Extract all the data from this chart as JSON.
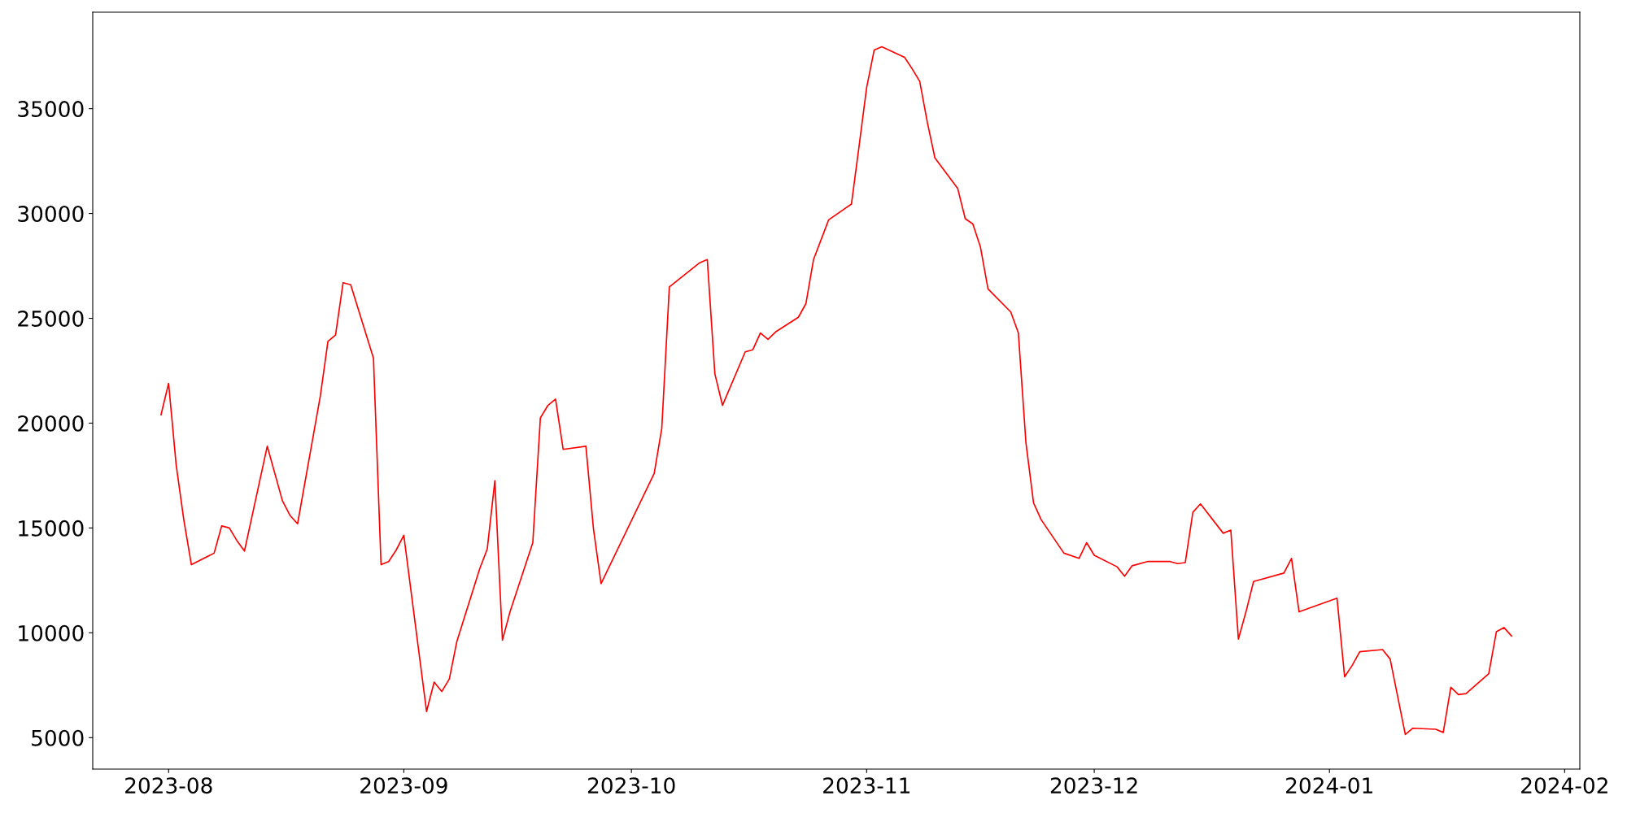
{
  "chart_data": {
    "type": "line",
    "x": [
      "2023-07-31",
      "2023-08-01",
      "2023-08-02",
      "2023-08-03",
      "2023-08-04",
      "2023-08-07",
      "2023-08-08",
      "2023-08-09",
      "2023-08-10",
      "2023-08-11",
      "2023-08-14",
      "2023-08-16",
      "2023-08-17",
      "2023-08-18",
      "2023-08-21",
      "2023-08-22",
      "2023-08-23",
      "2023-08-24",
      "2023-08-25",
      "2023-08-28",
      "2023-08-29",
      "2023-08-30",
      "2023-08-31",
      "2023-09-01",
      "2023-09-04",
      "2023-09-05",
      "2023-09-06",
      "2023-09-07",
      "2023-09-08",
      "2023-09-11",
      "2023-09-12",
      "2023-09-13",
      "2023-09-14",
      "2023-09-15",
      "2023-09-18",
      "2023-09-19",
      "2023-09-20",
      "2023-09-21",
      "2023-09-22",
      "2023-09-25",
      "2023-09-26",
      "2023-09-27",
      "2023-10-04",
      "2023-10-05",
      "2023-10-06",
      "2023-10-10",
      "2023-10-11",
      "2023-10-12",
      "2023-10-13",
      "2023-10-16",
      "2023-10-17",
      "2023-10-18",
      "2023-10-19",
      "2023-10-20",
      "2023-10-23",
      "2023-10-24",
      "2023-10-25",
      "2023-10-27",
      "2023-10-30",
      "2023-10-31",
      "2023-11-01",
      "2023-11-02",
      "2023-11-03",
      "2023-11-06",
      "2023-11-07",
      "2023-11-08",
      "2023-11-09",
      "2023-11-10",
      "2023-11-13",
      "2023-11-14",
      "2023-11-15",
      "2023-11-16",
      "2023-11-17",
      "2023-11-20",
      "2023-11-21",
      "2023-11-22",
      "2023-11-23",
      "2023-11-24",
      "2023-11-27",
      "2023-11-29",
      "2023-11-30",
      "2023-12-01",
      "2023-12-04",
      "2023-12-05",
      "2023-12-06",
      "2023-12-08",
      "2023-12-11",
      "2023-12-12",
      "2023-12-13",
      "2023-12-14",
      "2023-12-15",
      "2023-12-18",
      "2023-12-19",
      "2023-12-20",
      "2023-12-21",
      "2023-12-22",
      "2023-12-26",
      "2023-12-27",
      "2023-12-28",
      "2024-01-02",
      "2024-01-03",
      "2024-01-04",
      "2024-01-05",
      "2024-01-08",
      "2024-01-09",
      "2024-01-11",
      "2024-01-12",
      "2024-01-15",
      "2024-01-16",
      "2024-01-17",
      "2024-01-18",
      "2024-01-19",
      "2024-01-22",
      "2024-01-23",
      "2024-01-24",
      "2024-01-25"
    ],
    "series": [
      {
        "color": "#ff0000",
        "values": [
          20400,
          21900,
          18000,
          15400,
          13250,
          13800,
          15100,
          15000,
          14400,
          13900,
          18900,
          16300,
          15600,
          15200,
          21300,
          23900,
          24200,
          26700,
          26600,
          23100,
          13250,
          13400,
          13950,
          14650,
          6250,
          7650,
          7200,
          7800,
          9600,
          13050,
          14000,
          17250,
          9650,
          11000,
          14300,
          20250,
          20850,
          21150,
          18750,
          18900,
          14950,
          12350,
          17600,
          19750,
          26500,
          27650,
          27800,
          22350,
          20850,
          23400,
          23500,
          24300,
          24000,
          24350,
          25050,
          25700,
          27800,
          29700,
          30450,
          33200,
          36000,
          37800,
          37950,
          37450,
          36900,
          36300,
          34350,
          32650,
          31200,
          29750,
          29500,
          28400,
          26400,
          25300,
          24300,
          19050,
          16200,
          15400,
          13800,
          13550,
          14300,
          13700,
          13150,
          12700,
          13200,
          13400,
          13400,
          13300,
          13350,
          15750,
          16150,
          14750,
          14900,
          9700,
          11000,
          12450,
          12850,
          13550,
          11000,
          11650,
          7900,
          8450,
          9100,
          9200,
          8750,
          5150,
          5450,
          5400,
          5250,
          7400,
          7050,
          7100,
          8050,
          10050,
          10250,
          9850
        ]
      }
    ],
    "xlim": [
      "2023-07-22",
      "2024-02-03"
    ],
    "xticks": [
      {
        "value": "2023-08-01",
        "label": "2023-08"
      },
      {
        "value": "2023-09-01",
        "label": "2023-09"
      },
      {
        "value": "2023-10-01",
        "label": "2023-10"
      },
      {
        "value": "2023-11-01",
        "label": "2023-11"
      },
      {
        "value": "2023-12-01",
        "label": "2023-12"
      },
      {
        "value": "2024-01-01",
        "label": "2024-01"
      },
      {
        "value": "2024-02-01",
        "label": "2024-02"
      }
    ],
    "ylim": [
      3500,
      39600
    ],
    "yticks": [
      5000,
      10000,
      15000,
      20000,
      25000,
      30000,
      35000
    ],
    "grid": false,
    "line_style": "solid"
  }
}
